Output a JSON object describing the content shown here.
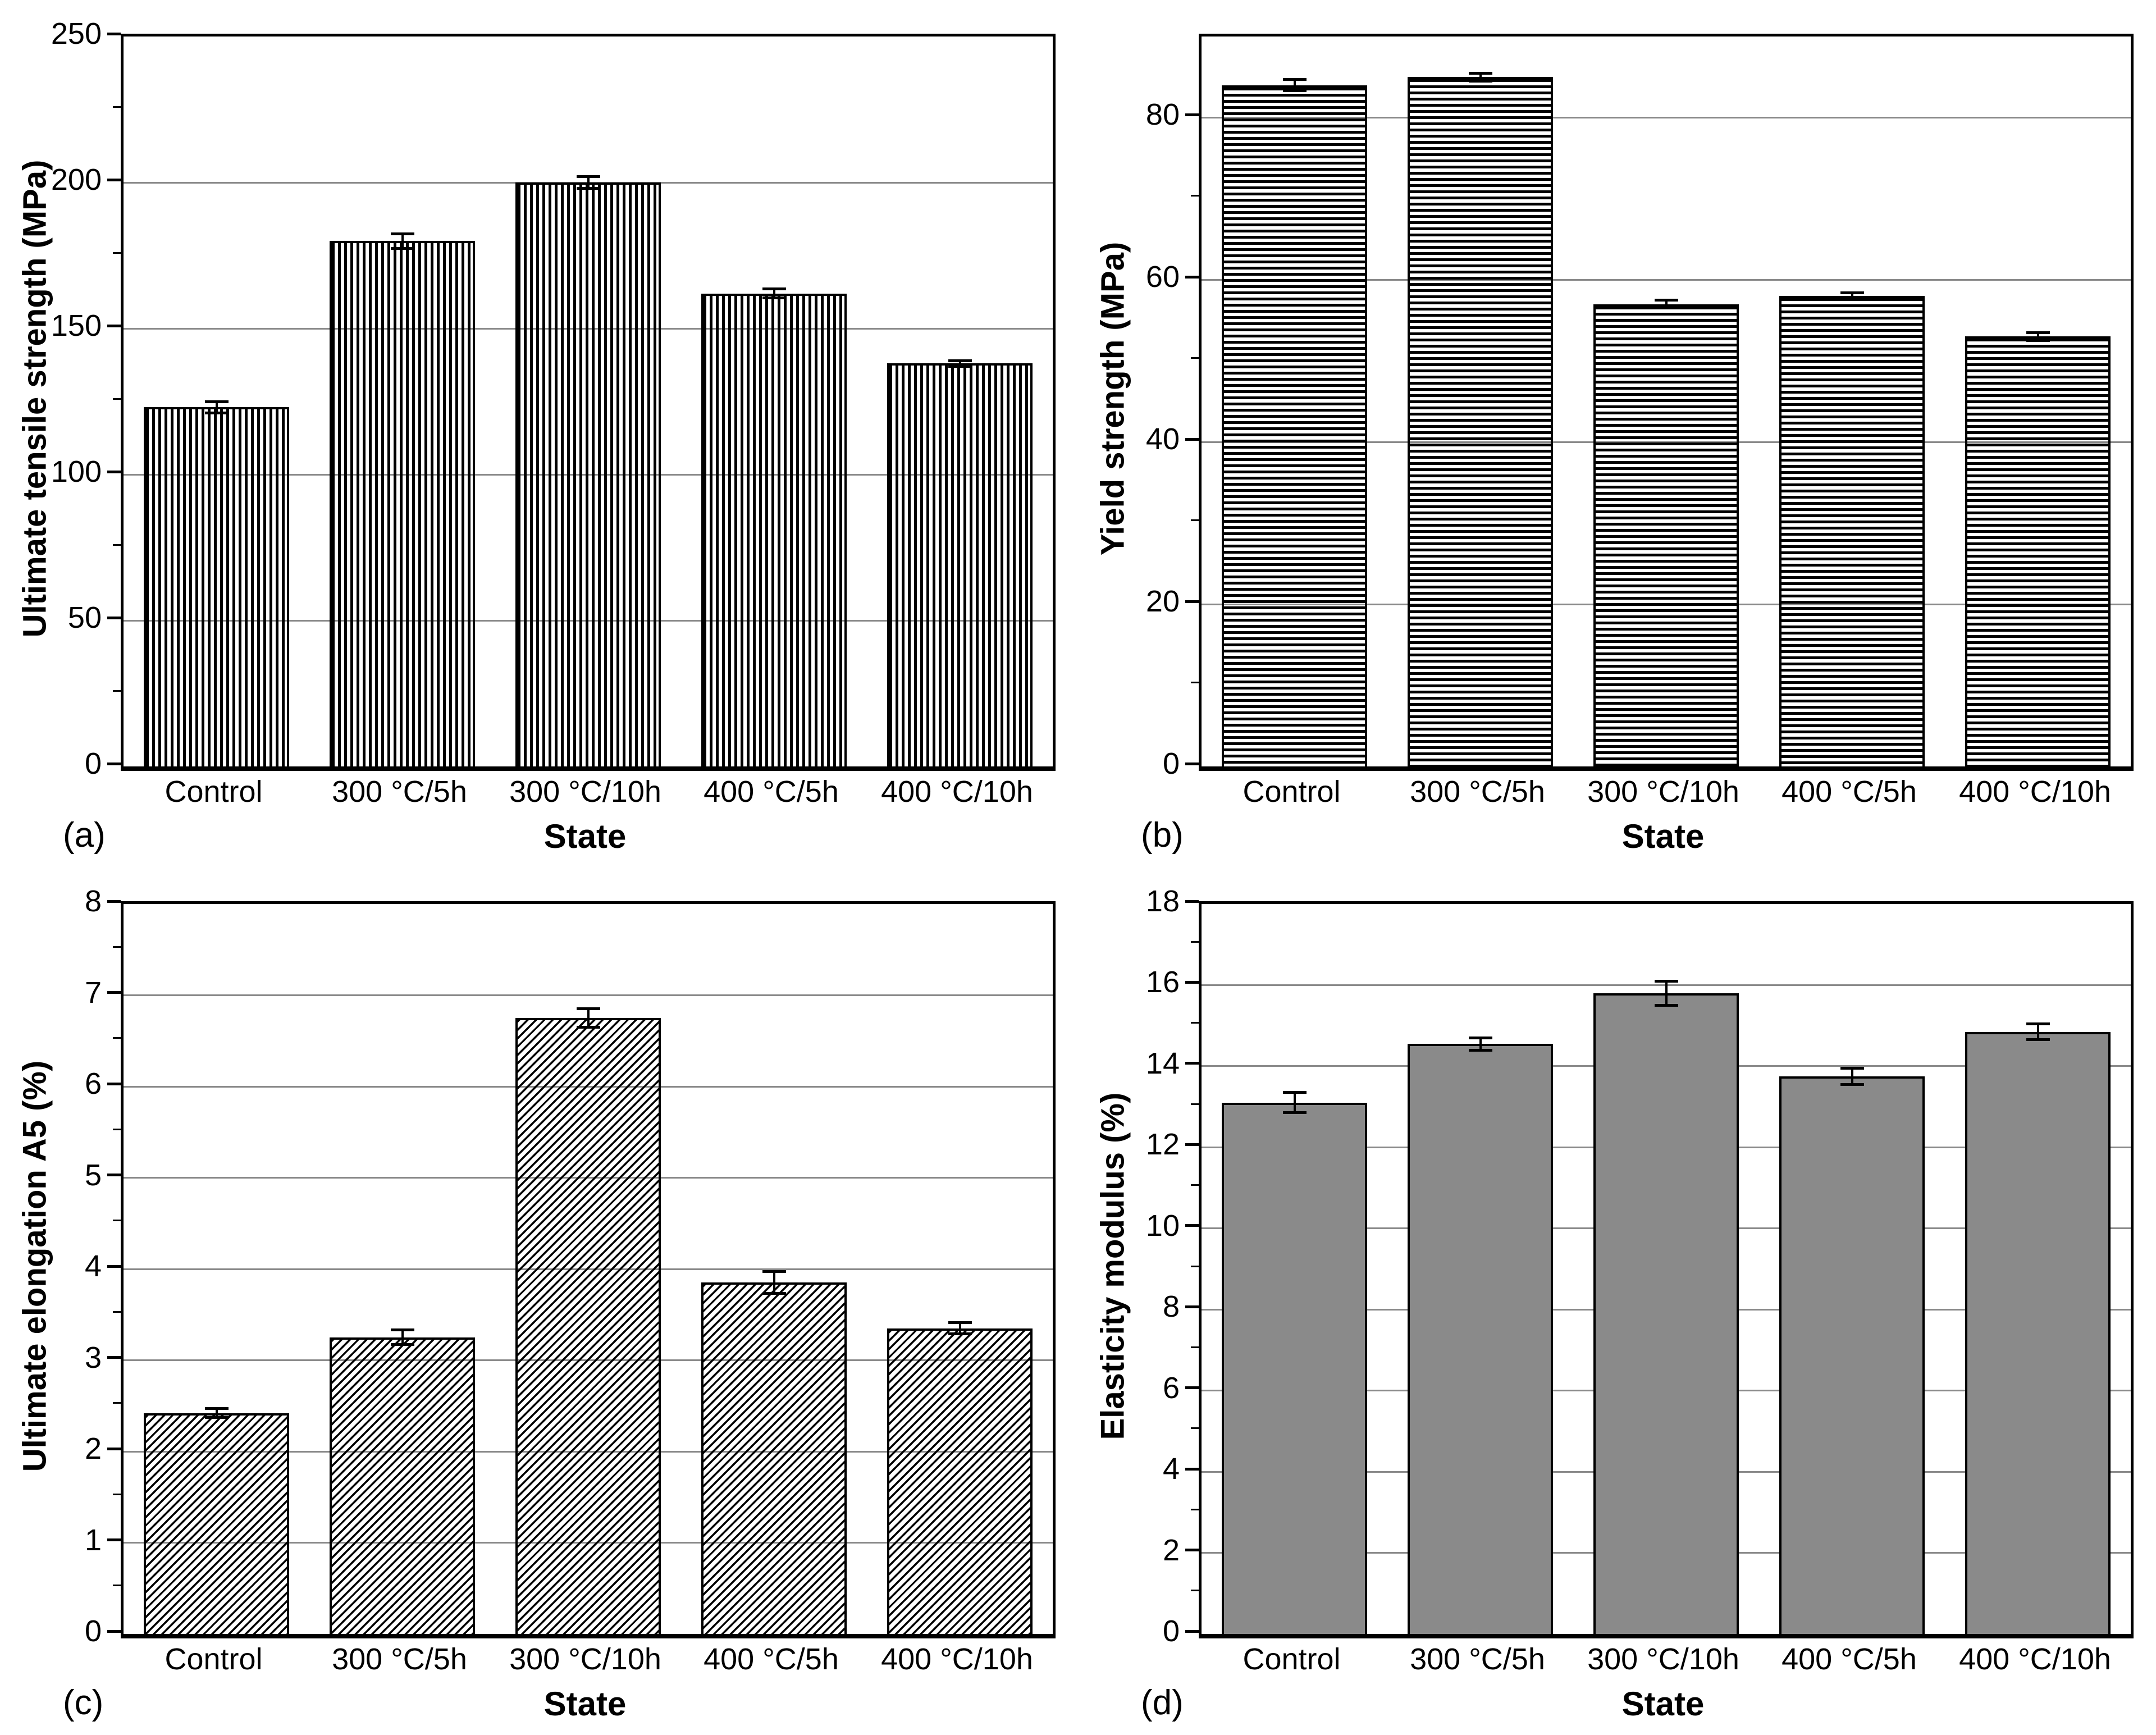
{
  "colors": {
    "axis": "#000000",
    "gridline": "#8a8a8a",
    "bar_gray": "#8a8a8a",
    "background": "#ffffff"
  },
  "chart_data": [
    {
      "type": "bar",
      "panel": "(a)",
      "xlabel": "State",
      "ylabel": "Ultimate tensile strength (MPa)",
      "categories": [
        "Control",
        "300 °C/5h",
        "300 °C/10h",
        "400 °C/5h",
        "400 °C/10h"
      ],
      "values": [
        123,
        180,
        200,
        162,
        138
      ],
      "errors": [
        2,
        2.5,
        2,
        1.5,
        1
      ],
      "ylim": [
        0,
        250
      ],
      "ytick_step": 50,
      "minor_tick_step": 25,
      "bar_fill": "vertical-hatch",
      "grid": "horizontal-major",
      "legend": "none"
    },
    {
      "type": "bar",
      "panel": "(b)",
      "xlabel": "State",
      "ylabel": "Yield strength (MPa)",
      "categories": [
        "Control",
        "300 °C/5h",
        "300 °C/10h",
        "400 °C/5h",
        "400 °C/10h"
      ],
      "values": [
        84,
        85,
        57,
        58,
        53
      ],
      "errors": [
        0.7,
        0.5,
        0.5,
        0.4,
        0.5
      ],
      "ylim": [
        0,
        90
      ],
      "ytick_step": 20,
      "minor_tick_step": 10,
      "bar_fill": "horizontal-hatch",
      "grid": "horizontal-major",
      "legend": "none"
    },
    {
      "type": "bar",
      "panel": "(c)",
      "xlabel": "State",
      "ylabel": "Ultimate elongation A5 (%)",
      "categories": [
        "Control",
        "300 °C/5h",
        "300 °C/10h",
        "400 °C/5h",
        "400 °C/10h"
      ],
      "values": [
        2.42,
        3.25,
        6.75,
        3.85,
        3.35
      ],
      "errors": [
        0.05,
        0.08,
        0.1,
        0.12,
        0.06
      ],
      "ylim": [
        0,
        8
      ],
      "ytick_step": 1,
      "minor_tick_step": 0.5,
      "bar_fill": "diagonal-hatch",
      "grid": "horizontal-major",
      "legend": "none"
    },
    {
      "type": "bar",
      "panel": "(d)",
      "xlabel": "State",
      "ylabel": "Elasticity modulus (%)",
      "categories": [
        "Control",
        "300 °C/5h",
        "300 °C/10h",
        "400 °C/5h",
        "400 °C/10h"
      ],
      "values": [
        13.1,
        14.55,
        15.8,
        13.75,
        14.85
      ],
      "errors": [
        0.25,
        0.15,
        0.3,
        0.2,
        0.2
      ],
      "ylim": [
        0,
        18
      ],
      "ytick_step": 2,
      "minor_tick_step": 1,
      "bar_fill": "solid-gray",
      "grid": "horizontal-major",
      "legend": "none"
    }
  ]
}
